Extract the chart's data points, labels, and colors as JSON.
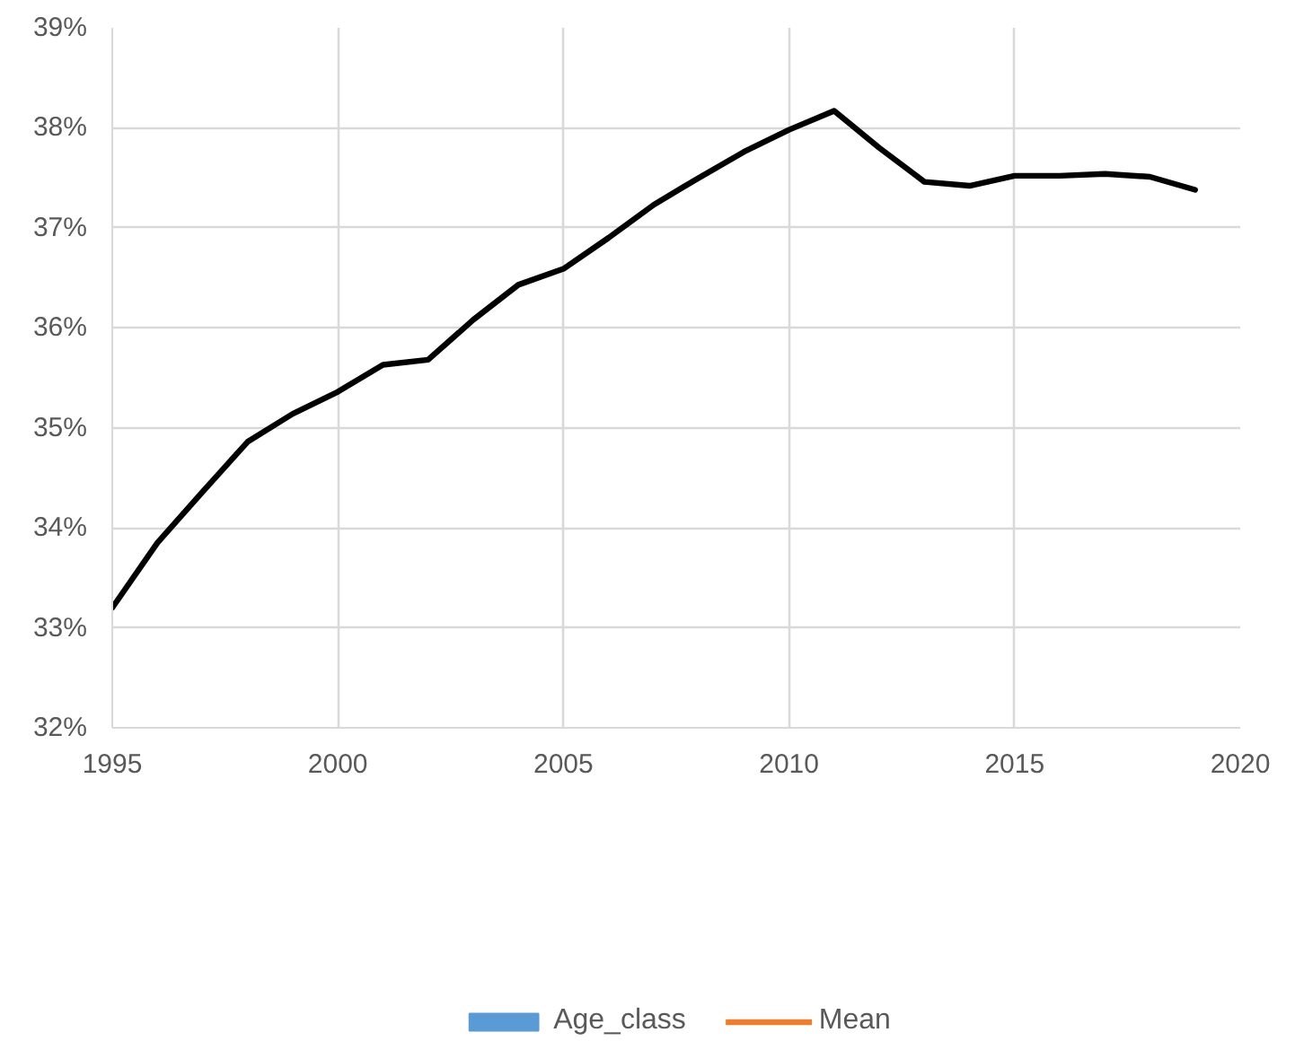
{
  "chart_data": {
    "type": "line",
    "x": [
      1995,
      1996,
      1997,
      1998,
      1999,
      2000,
      2001,
      2002,
      2003,
      2004,
      2005,
      2006,
      2007,
      2008,
      2009,
      2010,
      2011,
      2012,
      2013,
      2014,
      2015,
      2016,
      2017,
      2018,
      2019
    ],
    "xlim": [
      1995,
      2020
    ],
    "xticks": [
      1995,
      2000,
      2005,
      2010,
      2015,
      2020
    ],
    "ylim": [
      32,
      39
    ],
    "yticks": [
      {
        "value": 32,
        "label": "32%"
      },
      {
        "value": 33,
        "label": "33%"
      },
      {
        "value": 34,
        "label": "34%"
      },
      {
        "value": 35,
        "label": "35%"
      },
      {
        "value": 36,
        "label": "36%"
      },
      {
        "value": 37,
        "label": "37%"
      },
      {
        "value": 38,
        "label": "38%"
      },
      {
        "value": 39,
        "label": "39%"
      }
    ],
    "grid": true,
    "legend": "bottom",
    "series": [
      {
        "color": "#000000",
        "values": [
          33.2,
          33.85,
          34.36,
          34.86,
          35.14,
          35.36,
          35.63,
          35.68,
          36.08,
          36.43,
          36.59,
          36.9,
          37.23,
          37.5,
          37.76,
          37.98,
          38.17,
          37.8,
          37.46,
          37.42,
          37.52,
          37.52,
          37.54,
          37.51,
          37.38
        ]
      },
      {
        "name": "Age_class",
        "type": "bar",
        "color": "#5b9bd5",
        "values": [
          null,
          null,
          null,
          null,
          null,
          null,
          null,
          null,
          null,
          null,
          null,
          null,
          null,
          null,
          null,
          null,
          null,
          null,
          null,
          null,
          null,
          null,
          null,
          null,
          null
        ]
      },
      {
        "name": "Mean",
        "type": "line",
        "color": "#ed7d31",
        "values": [
          null,
          null,
          null,
          null,
          null,
          null,
          null,
          null,
          null,
          null,
          null,
          null,
          null,
          null,
          null,
          null,
          null,
          null,
          null,
          null,
          null,
          null,
          null,
          null,
          null
        ]
      }
    ]
  }
}
